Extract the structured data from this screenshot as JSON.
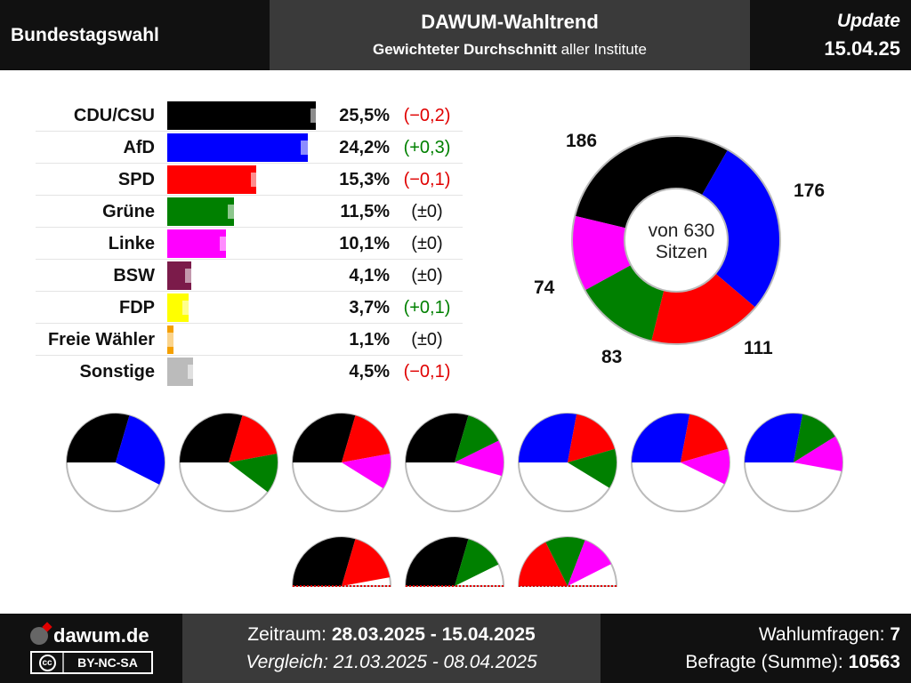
{
  "header": {
    "left_title": "Bundestagswahl",
    "title": "DAWUM-Wahltrend",
    "subtitle_bold": "Gewichteter Durchschnitt",
    "subtitle_rest": " aller Institute",
    "update_label": "Update",
    "update_date": "15.04.25"
  },
  "chart_data": [
    {
      "type": "bar",
      "categories": [
        "CDU/CSU",
        "AfD",
        "SPD",
        "Grüne",
        "Linke",
        "BSW",
        "FDP",
        "Freie Wähler",
        "Sonstige"
      ],
      "values": [
        25.5,
        24.2,
        15.3,
        11.5,
        10.1,
        4.1,
        3.7,
        1.1,
        4.5
      ],
      "previous_values": [
        25.7,
        23.9,
        15.4,
        11.5,
        10.1,
        4.1,
        3.6,
        1.1,
        4.6
      ],
      "value_labels": [
        "25,5%",
        "24,2%",
        "15,3%",
        "11,5%",
        "10,1%",
        "4,1%",
        "3,7%",
        "1,1%",
        "4,5%"
      ],
      "change_labels": [
        "(−0,2)",
        "(+0,3)",
        "(−0,1)",
        "(±0)",
        "(±0)",
        "(±0)",
        "(+0,1)",
        "(±0)",
        "(−0,1)"
      ],
      "change_sign": [
        "neg",
        "pos",
        "neg",
        "zero",
        "zero",
        "zero",
        "pos",
        "zero",
        "neg"
      ],
      "colors": [
        "#000000",
        "#0000ff",
        "#ff0000",
        "#008000",
        "#ff00ff",
        "#7b1b4a",
        "#ffff00",
        "#f5a000",
        "#bbbbbb"
      ],
      "orientation": "horizontal",
      "xlim": [
        0,
        26
      ]
    },
    {
      "type": "pie",
      "variant": "donut",
      "labels": [
        "CDU/CSU",
        "AfD",
        "SPD",
        "Grüne",
        "Linke"
      ],
      "values": [
        186,
        176,
        111,
        83,
        74
      ],
      "value_labels": [
        "186",
        "176",
        "111",
        "83",
        "74"
      ],
      "colors": [
        "#000000",
        "#0000ff",
        "#ff0000",
        "#008000",
        "#ff00ff"
      ],
      "center_text_1": "von 630",
      "center_text_2": "Sitzen",
      "total": 630
    }
  ],
  "coalitions": [
    {
      "parties": [
        "CDU/CSU",
        "AfD"
      ],
      "seats": [
        186,
        176
      ],
      "colors": [
        "#000000",
        "#0000ff"
      ],
      "mode": "full"
    },
    {
      "parties": [
        "CDU/CSU",
        "SPD",
        "Grüne"
      ],
      "seats": [
        186,
        111,
        83
      ],
      "colors": [
        "#000000",
        "#ff0000",
        "#008000"
      ],
      "mode": "full"
    },
    {
      "parties": [
        "CDU/CSU",
        "SPD",
        "Linke"
      ],
      "seats": [
        186,
        111,
        74
      ],
      "colors": [
        "#000000",
        "#ff0000",
        "#ff00ff"
      ],
      "mode": "full"
    },
    {
      "parties": [
        "CDU/CSU",
        "Grüne",
        "Linke"
      ],
      "seats": [
        186,
        83,
        74
      ],
      "colors": [
        "#000000",
        "#008000",
        "#ff00ff"
      ],
      "mode": "full"
    },
    {
      "parties": [
        "AfD",
        "SPD",
        "Grüne"
      ],
      "seats": [
        176,
        111,
        83
      ],
      "colors": [
        "#0000ff",
        "#ff0000",
        "#008000"
      ],
      "mode": "full"
    },
    {
      "parties": [
        "AfD",
        "SPD",
        "Linke"
      ],
      "seats": [
        176,
        111,
        74
      ],
      "colors": [
        "#0000ff",
        "#ff0000",
        "#ff00ff"
      ],
      "mode": "full"
    },
    {
      "parties": [
        "AfD",
        "Grüne",
        "Linke"
      ],
      "seats": [
        176,
        83,
        74
      ],
      "colors": [
        "#0000ff",
        "#008000",
        "#ff00ff"
      ],
      "mode": "full"
    },
    {
      "parties": [
        "CDU/CSU",
        "SPD"
      ],
      "seats": [
        186,
        111
      ],
      "colors": [
        "#000000",
        "#ff0000"
      ],
      "mode": "half"
    },
    {
      "parties": [
        "CDU/CSU",
        "Grüne"
      ],
      "seats": [
        186,
        83
      ],
      "colors": [
        "#000000",
        "#008000"
      ],
      "mode": "half"
    },
    {
      "parties": [
        "SPD",
        "Grüne",
        "Linke"
      ],
      "seats": [
        111,
        83,
        74
      ],
      "colors": [
        "#ff0000",
        "#008000",
        "#ff00ff"
      ],
      "mode": "half"
    }
  ],
  "footer": {
    "site": "dawum.de",
    "license": "BY-NC-SA",
    "license_badge": "cc",
    "zeitraum_label": "Zeitraum: ",
    "zeitraum_value": "28.03.2025 - 15.04.2025",
    "vergleich": "Vergleich: 21.03.2025 - 08.04.2025",
    "umfragen_label": "Wahlumfragen: ",
    "umfragen_value": "7",
    "befragte_label": "Befragte (Summe): ",
    "befragte_value": "10563"
  }
}
